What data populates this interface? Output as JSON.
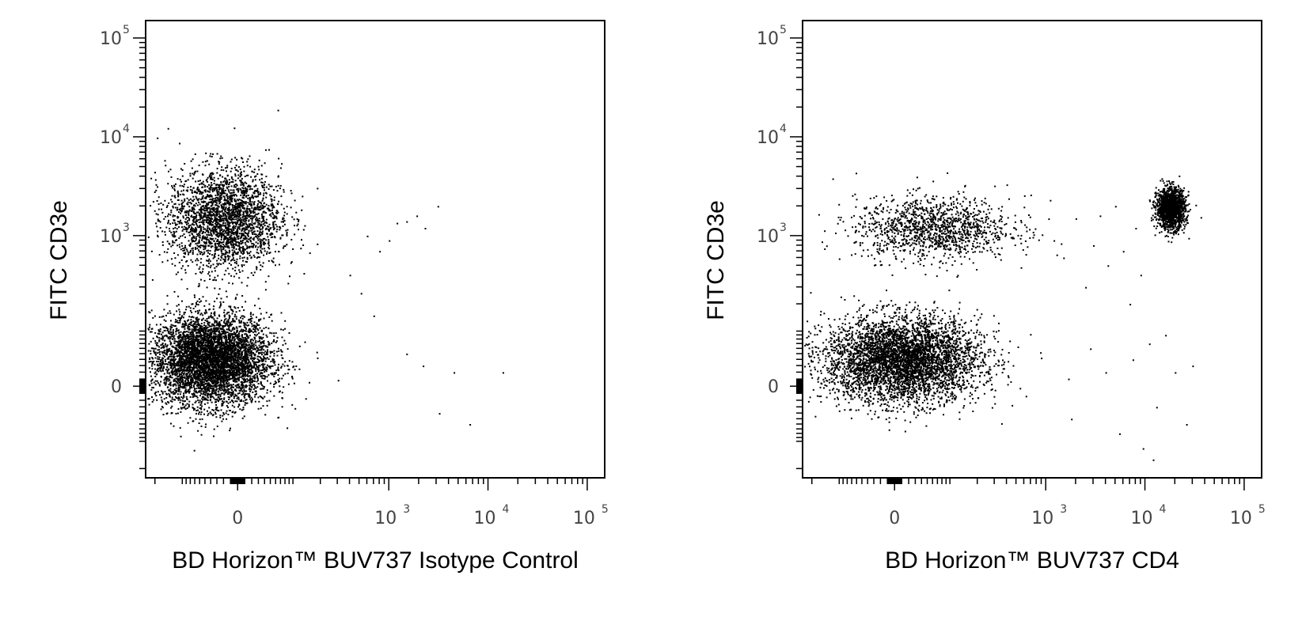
{
  "chart_data": [
    {
      "type": "scatter",
      "panel_title": "",
      "xlabel": "BD Horizon™ BUV737 Isotype Control",
      "ylabel": "FITC  CD3e",
      "x_scale": "biexponential",
      "y_scale": "biexponential",
      "xlim": [
        -250,
        150000
      ],
      "ylim": [
        -250,
        150000
      ],
      "x_ticks": [
        {
          "value": 0,
          "base": "0",
          "exp": ""
        },
        {
          "value": 1000,
          "base": "10",
          "exp": "3"
        },
        {
          "value": 10000,
          "base": "10",
          "exp": "4"
        },
        {
          "value": 100000,
          "base": "10",
          "exp": "5"
        }
      ],
      "y_ticks": [
        {
          "value": 0,
          "base": "0",
          "exp": ""
        },
        {
          "value": 1000,
          "base": "10",
          "exp": "3"
        },
        {
          "value": 10000,
          "base": "10",
          "exp": "4"
        },
        {
          "value": 100000,
          "base": "10",
          "exp": "5"
        }
      ],
      "populations": [
        {
          "name": "",
          "center_x": -40,
          "center_y": 40,
          "spread_x": 0.42,
          "spread_y": 0.32,
          "events": 5200
        },
        {
          "name": "",
          "center_x": -20,
          "center_y": 1500,
          "spread_x": 0.4,
          "spread_y": 0.36,
          "events": 2600
        }
      ],
      "sparse_events": [
        [
          600,
          1000
        ],
        [
          800,
          700
        ],
        [
          1000,
          900
        ],
        [
          1200,
          1350
        ],
        [
          1500,
          1400
        ],
        [
          1900,
          1600
        ],
        [
          2300,
          1200
        ],
        [
          3100,
          2000
        ],
        [
          1500,
          50
        ],
        [
          2200,
          30
        ],
        [
          3200,
          -40
        ],
        [
          4500,
          20
        ],
        [
          6500,
          -60
        ],
        [
          14000,
          20
        ],
        [
          400,
          400
        ],
        [
          520,
          260
        ],
        [
          700,
          150
        ]
      ],
      "grid": false,
      "legend": "none"
    },
    {
      "type": "scatter",
      "panel_title": "",
      "xlabel": "BD Horizon™ BUV737  CD4",
      "ylabel": "FITC  CD3e",
      "x_scale": "biexponential",
      "y_scale": "biexponential",
      "xlim": [
        -250,
        150000
      ],
      "ylim": [
        -250,
        150000
      ],
      "x_ticks": [
        {
          "value": 0,
          "base": "0",
          "exp": ""
        },
        {
          "value": 1000,
          "base": "10",
          "exp": "3"
        },
        {
          "value": 10000,
          "base": "10",
          "exp": "4"
        },
        {
          "value": 100000,
          "base": "10",
          "exp": "5"
        }
      ],
      "y_ticks": [
        {
          "value": 0,
          "base": "0",
          "exp": ""
        },
        {
          "value": 1000,
          "base": "10",
          "exp": "3"
        },
        {
          "value": 10000,
          "base": "10",
          "exp": "4"
        },
        {
          "value": 100000,
          "base": "10",
          "exp": "5"
        }
      ],
      "populations": [
        {
          "name": "",
          "center_x": 10,
          "center_y": 40,
          "spread_x": 0.55,
          "spread_y": 0.3,
          "events": 4600
        },
        {
          "name": "",
          "center_x": 60,
          "center_y": 1200,
          "spread_x": 0.55,
          "spread_y": 0.22,
          "events": 1300
        },
        {
          "name": "",
          "center_x": 18000,
          "center_y": 1900,
          "spread_x": 0.1,
          "spread_y": 0.14,
          "events": 1600
        }
      ],
      "sparse_events": [
        [
          1200,
          900
        ],
        [
          1500,
          600
        ],
        [
          2000,
          1500
        ],
        [
          2500,
          300
        ],
        [
          3000,
          800
        ],
        [
          3500,
          1600
        ],
        [
          4200,
          500
        ],
        [
          5000,
          2000
        ],
        [
          6000,
          700
        ],
        [
          7000,
          200
        ],
        [
          8000,
          1200
        ],
        [
          9000,
          400
        ],
        [
          1800,
          -50
        ],
        [
          2800,
          60
        ],
        [
          4000,
          20
        ],
        [
          5500,
          -80
        ],
        [
          7500,
          40
        ],
        [
          9500,
          -120
        ],
        [
          11000,
          70
        ],
        [
          13000,
          -30
        ],
        [
          16000,
          90
        ],
        [
          20000,
          20
        ],
        [
          26000,
          -60
        ],
        [
          30000,
          30
        ],
        [
          12000,
          -160
        ],
        [
          700,
          2600
        ],
        [
          1100,
          2300
        ],
        [
          400,
          3300
        ],
        [
          -120,
          3800
        ],
        [
          60,
          3600
        ]
      ],
      "grid": false,
      "legend": "none"
    }
  ]
}
